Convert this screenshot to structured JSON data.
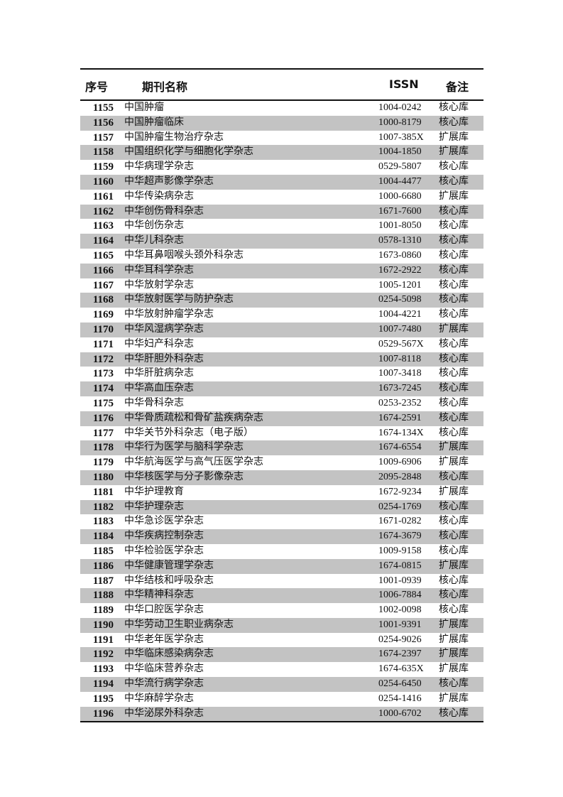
{
  "headers": {
    "no": "序号",
    "name": "期刊名称",
    "issn": "ISSN",
    "note": "备注"
  },
  "rows": [
    [
      "1155",
      "中国肿瘤",
      "1004-0242",
      "核心库"
    ],
    [
      "1156",
      "中国肿瘤临床",
      "1000-8179",
      "核心库"
    ],
    [
      "1157",
      "中国肿瘤生物治疗杂志",
      "1007-385X",
      "扩展库"
    ],
    [
      "1158",
      "中国组织化学与细胞化学杂志",
      "1004-1850",
      "扩展库"
    ],
    [
      "1159",
      "中华病理学杂志",
      "0529-5807",
      "核心库"
    ],
    [
      "1160",
      "中华超声影像学杂志",
      "1004-4477",
      "核心库"
    ],
    [
      "1161",
      "中华传染病杂志",
      "1000-6680",
      "扩展库"
    ],
    [
      "1162",
      "中华创伤骨科杂志",
      "1671-7600",
      "核心库"
    ],
    [
      "1163",
      "中华创伤杂志",
      "1001-8050",
      "核心库"
    ],
    [
      "1164",
      "中华儿科杂志",
      "0578-1310",
      "核心库"
    ],
    [
      "1165",
      "中华耳鼻咽喉头颈外科杂志",
      "1673-0860",
      "核心库"
    ],
    [
      "1166",
      "中华耳科学杂志",
      "1672-2922",
      "核心库"
    ],
    [
      "1167",
      "中华放射学杂志",
      "1005-1201",
      "核心库"
    ],
    [
      "1168",
      "中华放射医学与防护杂志",
      "0254-5098",
      "核心库"
    ],
    [
      "1169",
      "中华放射肿瘤学杂志",
      "1004-4221",
      "核心库"
    ],
    [
      "1170",
      "中华风湿病学杂志",
      "1007-7480",
      "扩展库"
    ],
    [
      "1171",
      "中华妇产科杂志",
      "0529-567X",
      "核心库"
    ],
    [
      "1172",
      "中华肝胆外科杂志",
      "1007-8118",
      "核心库"
    ],
    [
      "1173",
      "中华肝脏病杂志",
      "1007-3418",
      "核心库"
    ],
    [
      "1174",
      "中华高血压杂志",
      "1673-7245",
      "核心库"
    ],
    [
      "1175",
      "中华骨科杂志",
      "0253-2352",
      "核心库"
    ],
    [
      "1176",
      "中华骨质疏松和骨矿盐疾病杂志",
      "1674-2591",
      "核心库"
    ],
    [
      "1177",
      "中华关节外科杂志（电子版）",
      "1674-134X",
      "核心库"
    ],
    [
      "1178",
      "中华行为医学与脑科学杂志",
      "1674-6554",
      "扩展库"
    ],
    [
      "1179",
      "中华航海医学与高气压医学杂志",
      "1009-6906",
      "扩展库"
    ],
    [
      "1180",
      "中华核医学与分子影像杂志",
      "2095-2848",
      "核心库"
    ],
    [
      "1181",
      "中华护理教育",
      "1672-9234",
      "扩展库"
    ],
    [
      "1182",
      "中华护理杂志",
      "0254-1769",
      "核心库"
    ],
    [
      "1183",
      "中华急诊医学杂志",
      "1671-0282",
      "核心库"
    ],
    [
      "1184",
      "中华疾病控制杂志",
      "1674-3679",
      "核心库"
    ],
    [
      "1185",
      "中华检验医学杂志",
      "1009-9158",
      "核心库"
    ],
    [
      "1186",
      "中华健康管理学杂志",
      "1674-0815",
      "扩展库"
    ],
    [
      "1187",
      "中华结核和呼吸杂志",
      "1001-0939",
      "核心库"
    ],
    [
      "1188",
      "中华精神科杂志",
      "1006-7884",
      "核心库"
    ],
    [
      "1189",
      "中华口腔医学杂志",
      "1002-0098",
      "核心库"
    ],
    [
      "1190",
      "中华劳动卫生职业病杂志",
      "1001-9391",
      "扩展库"
    ],
    [
      "1191",
      "中华老年医学杂志",
      "0254-9026",
      "扩展库"
    ],
    [
      "1192",
      "中华临床感染病杂志",
      "1674-2397",
      "扩展库"
    ],
    [
      "1193",
      "中华临床营养杂志",
      "1674-635X",
      "扩展库"
    ],
    [
      "1194",
      "中华流行病学杂志",
      "0254-6450",
      "核心库"
    ],
    [
      "1195",
      "中华麻醉学杂志",
      "0254-1416",
      "扩展库"
    ],
    [
      "1196",
      "中华泌尿外科杂志",
      "1000-6702",
      "核心库"
    ]
  ],
  "colors": {
    "stripe": "#c3c3c3",
    "rule": "#111111"
  }
}
